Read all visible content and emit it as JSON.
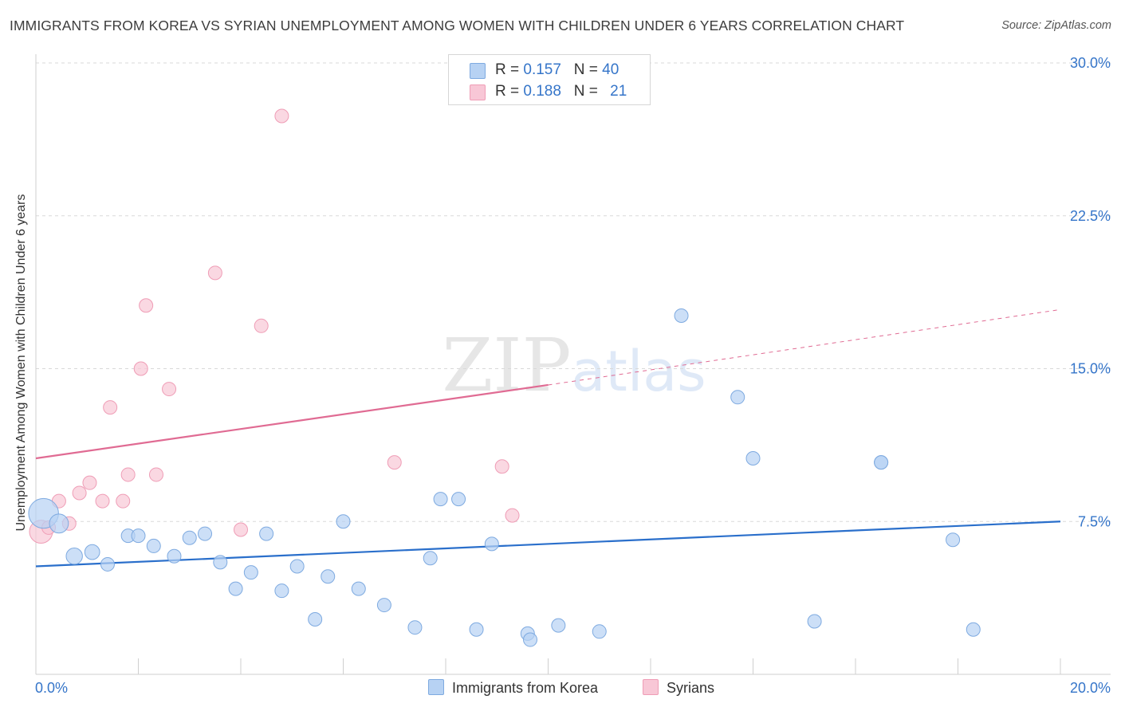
{
  "title": "IMMIGRANTS FROM KOREA VS SYRIAN UNEMPLOYMENT AMONG WOMEN WITH CHILDREN UNDER 6 YEARS CORRELATION CHART",
  "source": "Source: ZipAtlas.com",
  "watermark": "ZIPatlas",
  "colors": {
    "korea_fill": "#b7d2f3",
    "korea_stroke": "#7eaae0",
    "korea_line": "#2a6fcb",
    "syrian_fill": "#f8c7d6",
    "syrian_stroke": "#ef9db6",
    "syrian_line": "#e06b93",
    "axis_text": "#3575c9",
    "grid": "#d9d9d9"
  },
  "legend": {
    "korea": {
      "r_label": "R = ",
      "r_value": "0.157",
      "n_label": "N = ",
      "n_value": "40"
    },
    "syrian": {
      "r_label": "R = ",
      "r_value": "0.188",
      "n_label": "N = ",
      "n_value": "21"
    }
  },
  "bottom_legend": {
    "korea": "Immigrants from Korea",
    "syrian": "Syrians"
  },
  "chart_data": {
    "type": "scatter",
    "title": "IMMIGRANTS FROM KOREA VS SYRIAN UNEMPLOYMENT AMONG WOMEN WITH CHILDREN UNDER 6 YEARS CORRELATION CHART",
    "xlabel": "",
    "ylabel": "Unemployment Among Women with Children Under 6 years",
    "xlim": [
      0,
      20
    ],
    "ylim": [
      0,
      30
    ],
    "x_tick_labels": [
      "0.0%",
      "20.0%"
    ],
    "y_ticks": [
      7.5,
      15.0,
      22.5,
      30.0
    ],
    "y_tick_labels": [
      "7.5%",
      "15.0%",
      "22.5%",
      "30.0%"
    ],
    "grid": "horizontal dashed",
    "legend_position": "top-center",
    "series": [
      {
        "name": "Immigrants from Korea",
        "trend": {
          "x": [
            0,
            20
          ],
          "y": [
            5.3,
            7.5
          ]
        },
        "points": [
          {
            "x": 0.15,
            "y": 7.9,
            "s": 2.2
          },
          {
            "x": 0.45,
            "y": 7.4,
            "s": 1.4
          },
          {
            "x": 0.75,
            "y": 5.8,
            "s": 1.2
          },
          {
            "x": 1.1,
            "y": 6.0,
            "s": 1.1
          },
          {
            "x": 1.4,
            "y": 5.4,
            "s": 1.0
          },
          {
            "x": 1.8,
            "y": 6.8,
            "s": 1.0
          },
          {
            "x": 2.0,
            "y": 6.8,
            "s": 1.0
          },
          {
            "x": 2.3,
            "y": 6.3,
            "s": 1.0
          },
          {
            "x": 2.7,
            "y": 5.8,
            "s": 1.0
          },
          {
            "x": 3.0,
            "y": 6.7,
            "s": 1.0
          },
          {
            "x": 3.3,
            "y": 6.9,
            "s": 1.0
          },
          {
            "x": 3.6,
            "y": 5.5,
            "s": 1.0
          },
          {
            "x": 3.9,
            "y": 4.2,
            "s": 1.0
          },
          {
            "x": 4.2,
            "y": 5.0,
            "s": 1.0
          },
          {
            "x": 4.5,
            "y": 6.9,
            "s": 1.0
          },
          {
            "x": 4.8,
            "y": 4.1,
            "s": 1.0
          },
          {
            "x": 5.1,
            "y": 5.3,
            "s": 1.0
          },
          {
            "x": 5.45,
            "y": 2.7,
            "s": 1.0
          },
          {
            "x": 5.7,
            "y": 4.8,
            "s": 1.0
          },
          {
            "x": 6.0,
            "y": 7.5,
            "s": 1.0
          },
          {
            "x": 6.3,
            "y": 4.2,
            "s": 1.0
          },
          {
            "x": 6.8,
            "y": 3.4,
            "s": 1.0
          },
          {
            "x": 7.4,
            "y": 2.3,
            "s": 1.0
          },
          {
            "x": 7.7,
            "y": 5.7,
            "s": 1.0
          },
          {
            "x": 7.9,
            "y": 8.6,
            "s": 1.0
          },
          {
            "x": 8.25,
            "y": 8.6,
            "s": 1.0
          },
          {
            "x": 8.6,
            "y": 2.2,
            "s": 1.0
          },
          {
            "x": 8.9,
            "y": 6.4,
            "s": 1.0
          },
          {
            "x": 9.6,
            "y": 2.0,
            "s": 1.0
          },
          {
            "x": 9.65,
            "y": 1.7,
            "s": 1.0
          },
          {
            "x": 10.2,
            "y": 2.4,
            "s": 1.0
          },
          {
            "x": 11.0,
            "y": 2.1,
            "s": 1.0
          },
          {
            "x": 12.6,
            "y": 17.6,
            "s": 1.0
          },
          {
            "x": 13.7,
            "y": 13.6,
            "s": 1.0
          },
          {
            "x": 14.0,
            "y": 10.6,
            "s": 1.0
          },
          {
            "x": 15.2,
            "y": 2.6,
            "s": 1.0
          },
          {
            "x": 16.5,
            "y": 10.4,
            "s": 1.0
          },
          {
            "x": 16.5,
            "y": 10.4,
            "s": 1.0
          },
          {
            "x": 17.9,
            "y": 6.6,
            "s": 1.0
          },
          {
            "x": 18.3,
            "y": 2.2,
            "s": 1.0
          }
        ]
      },
      {
        "name": "Syrians",
        "trend": {
          "x": [
            0,
            10
          ],
          "y": [
            10.6,
            14.2
          ]
        },
        "trend_extension": {
          "x": [
            10,
            20
          ],
          "y": [
            14.2,
            17.9
          ]
        },
        "points": [
          {
            "x": 0.1,
            "y": 7.0,
            "s": 1.7
          },
          {
            "x": 0.25,
            "y": 7.2,
            "s": 1.0
          },
          {
            "x": 0.45,
            "y": 8.5,
            "s": 1.0
          },
          {
            "x": 0.65,
            "y": 7.4,
            "s": 1.0
          },
          {
            "x": 0.85,
            "y": 8.9,
            "s": 1.0
          },
          {
            "x": 1.05,
            "y": 9.4,
            "s": 1.0
          },
          {
            "x": 1.3,
            "y": 8.5,
            "s": 1.0
          },
          {
            "x": 1.45,
            "y": 13.1,
            "s": 1.0
          },
          {
            "x": 1.7,
            "y": 8.5,
            "s": 1.0
          },
          {
            "x": 1.8,
            "y": 9.8,
            "s": 1.0
          },
          {
            "x": 2.05,
            "y": 15.0,
            "s": 1.0
          },
          {
            "x": 2.15,
            "y": 18.1,
            "s": 1.0
          },
          {
            "x": 2.35,
            "y": 9.8,
            "s": 1.0
          },
          {
            "x": 2.6,
            "y": 14.0,
            "s": 1.0
          },
          {
            "x": 3.5,
            "y": 19.7,
            "s": 1.0
          },
          {
            "x": 4.0,
            "y": 7.1,
            "s": 1.0
          },
          {
            "x": 4.4,
            "y": 17.1,
            "s": 1.0
          },
          {
            "x": 4.8,
            "y": 27.4,
            "s": 1.0
          },
          {
            "x": 7.0,
            "y": 10.4,
            "s": 1.0
          },
          {
            "x": 9.1,
            "y": 10.2,
            "s": 1.0
          },
          {
            "x": 9.3,
            "y": 7.8,
            "s": 1.0
          }
        ]
      }
    ]
  }
}
